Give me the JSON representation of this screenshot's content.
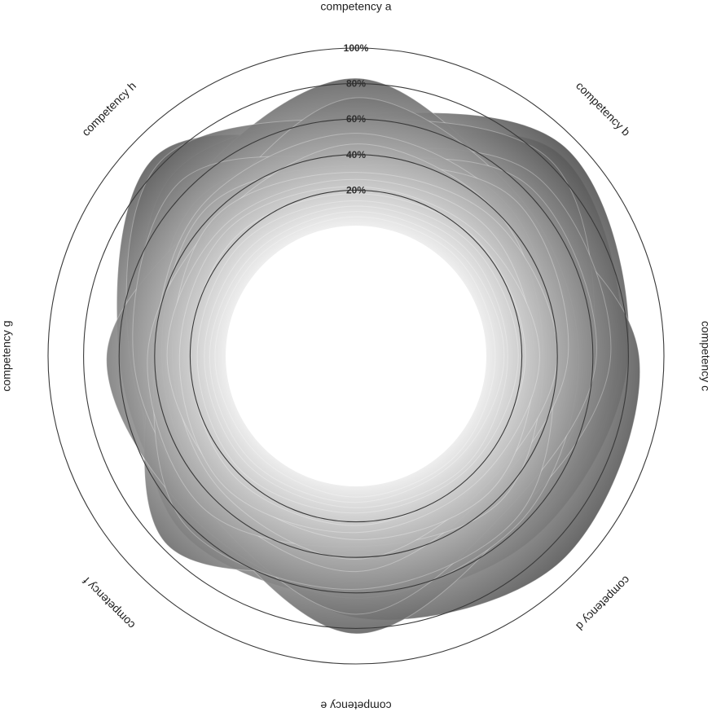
{
  "chart_data": {
    "type": "radar",
    "axes": [
      "competency a",
      "competency b",
      "competency c",
      "competency d",
      "competency e",
      "competency f",
      "competency g",
      "competency h"
    ],
    "rlim": [
      0,
      100
    ],
    "rticks": [
      20,
      40,
      60,
      80,
      100
    ],
    "tick_labels": [
      "20%",
      "40%",
      "60%",
      "80%",
      "100%"
    ],
    "grid": true,
    "fill_gradient": [
      "#ffffff",
      "#3a3a3a"
    ],
    "series": [
      {
        "values": [
          48,
          88,
          76,
          63,
          60,
          58,
          60,
          86
        ]
      },
      {
        "values": [
          62,
          93,
          80,
          70,
          63,
          66,
          48,
          72
        ]
      },
      {
        "values": [
          83,
          56,
          86,
          90,
          74,
          44,
          47,
          60
        ]
      },
      {
        "values": [
          60,
          82,
          60,
          55,
          83,
          50,
          54,
          82
        ]
      },
      {
        "values": [
          42,
          70,
          70,
          52,
          45,
          77,
          42,
          52
        ]
      },
      {
        "values": [
          72,
          55,
          52,
          58,
          63,
          56,
          67,
          43
        ]
      },
      {
        "values": [
          38,
          63,
          62,
          48,
          72,
          47,
          52,
          66
        ]
      },
      {
        "values": [
          52,
          47,
          38,
          55,
          58,
          62,
          40,
          48
        ]
      },
      {
        "values": [
          34,
          52,
          46,
          34,
          48,
          40,
          36,
          45
        ]
      },
      {
        "values": [
          46,
          40,
          32,
          42,
          34,
          48,
          44,
          36
        ]
      },
      {
        "values": [
          30,
          36,
          40,
          30,
          41,
          34,
          30,
          38
        ]
      },
      {
        "values": [
          26,
          30,
          27,
          34,
          30,
          29,
          33,
          31
        ]
      },
      {
        "values": [
          22,
          24,
          30,
          25,
          26,
          31,
          26,
          28
        ]
      },
      {
        "values": [
          18,
          21,
          22,
          20,
          22,
          23,
          20,
          22
        ]
      },
      {
        "values": [
          14,
          17,
          18,
          16,
          15,
          18,
          16,
          17
        ]
      },
      {
        "values": [
          11,
          13,
          12,
          14,
          12,
          13,
          12,
          12
        ]
      },
      {
        "values": [
          8,
          9,
          10,
          8,
          9,
          10,
          9,
          8
        ]
      },
      {
        "values": [
          5,
          6,
          5,
          6,
          6,
          5,
          6,
          5
        ]
      }
    ]
  }
}
